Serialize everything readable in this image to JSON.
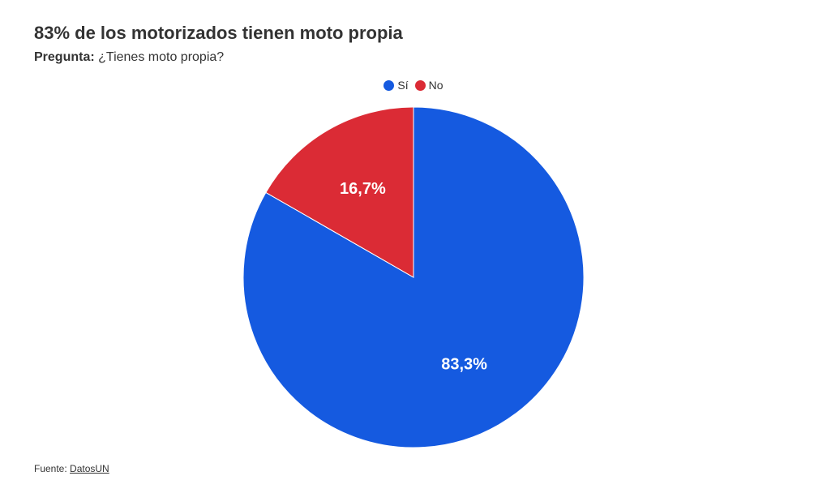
{
  "header": {
    "title": "83% de los motorizados tienen moto propia",
    "question_label": "Pregunta:",
    "question_text": "¿Tienes moto propia?"
  },
  "footer": {
    "source_label": "Fuente:",
    "source_link": "DatosUN"
  },
  "chart_data": {
    "type": "pie",
    "title": "83% de los motorizados tienen moto propia",
    "subtitle": "Pregunta: ¿Tienes moto propia?",
    "legend_position": "top-center",
    "start_angle_deg": 0,
    "direction": "clockwise",
    "slices": [
      {
        "label": "Sí",
        "value": 83.3,
        "display": "83,3%",
        "color": "#155ae0"
      },
      {
        "label": "No",
        "value": 16.7,
        "display": "16,7%",
        "color": "#db2b35"
      }
    ]
  }
}
